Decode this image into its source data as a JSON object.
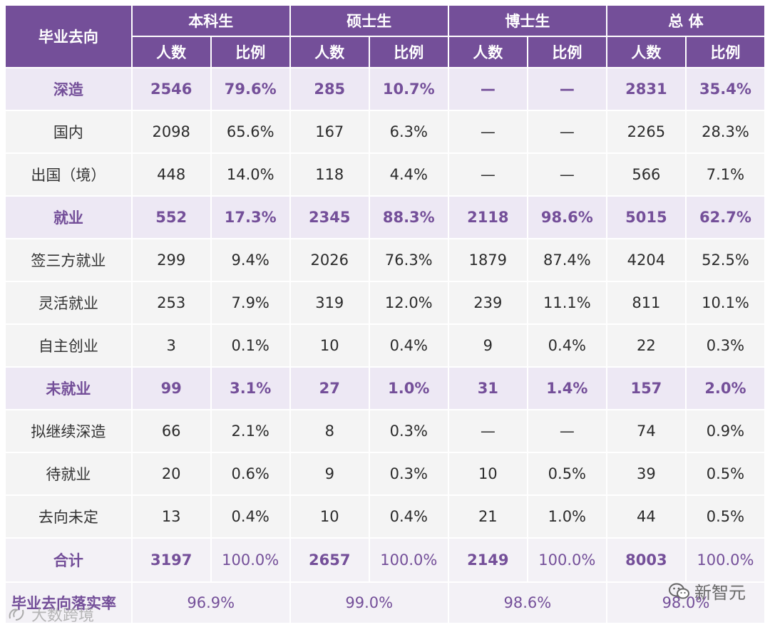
{
  "header": {
    "first_col": "毕业去向",
    "groups": [
      "本科生",
      "硕士生",
      "博士生",
      "总 体"
    ],
    "subheaders": [
      "人数",
      "比例",
      "人数",
      "比例",
      "人数",
      "比例",
      "人数",
      "比例"
    ]
  },
  "rows": [
    {
      "type": "cat",
      "label": "深造",
      "cells": [
        "2546",
        "79.6%",
        "285",
        "10.7%",
        "—",
        "—",
        "2831",
        "35.4%"
      ]
    },
    {
      "type": "sub",
      "label": "国内",
      "cells": [
        "2098",
        "65.6%",
        "167",
        "6.3%",
        "—",
        "—",
        "2265",
        "28.3%"
      ]
    },
    {
      "type": "sub",
      "label": "出国（境）",
      "cells": [
        "448",
        "14.0%",
        "118",
        "4.4%",
        "—",
        "—",
        "566",
        "7.1%"
      ]
    },
    {
      "type": "cat",
      "label": "就业",
      "cells": [
        "552",
        "17.3%",
        "2345",
        "88.3%",
        "2118",
        "98.6%",
        "5015",
        "62.7%"
      ]
    },
    {
      "type": "sub",
      "label": "签三方就业",
      "cells": [
        "299",
        "9.4%",
        "2026",
        "76.3%",
        "1879",
        "87.4%",
        "4204",
        "52.5%"
      ]
    },
    {
      "type": "sub",
      "label": "灵活就业",
      "cells": [
        "253",
        "7.9%",
        "319",
        "12.0%",
        "239",
        "11.1%",
        "811",
        "10.1%"
      ]
    },
    {
      "type": "sub",
      "label": "自主创业",
      "cells": [
        "3",
        "0.1%",
        "10",
        "0.4%",
        "9",
        "0.4%",
        "22",
        "0.3%"
      ]
    },
    {
      "type": "cat",
      "label": "未就业",
      "cells": [
        "99",
        "3.1%",
        "27",
        "1.0%",
        "31",
        "1.4%",
        "157",
        "2.0%"
      ]
    },
    {
      "type": "sub",
      "label": "拟继续深造",
      "cells": [
        "66",
        "2.1%",
        "8",
        "0.3%",
        "—",
        "—",
        "74",
        "0.9%"
      ]
    },
    {
      "type": "sub",
      "label": "待就业",
      "cells": [
        "20",
        "0.6%",
        "9",
        "0.3%",
        "10",
        "0.5%",
        "39",
        "0.5%"
      ]
    },
    {
      "type": "sub",
      "label": "去向未定",
      "cells": [
        "13",
        "0.4%",
        "10",
        "0.4%",
        "21",
        "1.0%",
        "44",
        "0.5%"
      ]
    },
    {
      "type": "total",
      "label": "合计",
      "cells": [
        "3197",
        "100.0%",
        "2657",
        "100.0%",
        "2149",
        "100.0%",
        "8003",
        "100.0%"
      ]
    }
  ],
  "rate_row": {
    "label": "毕业去向落实率",
    "values": [
      "96.9%",
      "99.0%",
      "98.6%",
      "98.0%"
    ]
  },
  "watermarks": {
    "right": "新智元",
    "left": "大数跨境"
  },
  "colors": {
    "header_bg": "#744f99",
    "category_bg": "#ede8f4",
    "accent_text": "#744f99",
    "body_bg": "#f4f4f4"
  },
  "icons": {
    "right_watermark": "wechat-icon",
    "left_watermark": "logo-icon"
  }
}
